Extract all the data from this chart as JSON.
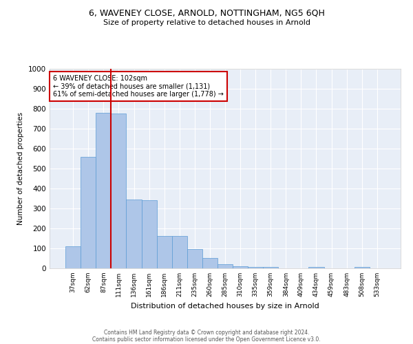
{
  "title_line1": "6, WAVENEY CLOSE, ARNOLD, NOTTINGHAM, NG5 6QH",
  "title_line2": "Size of property relative to detached houses in Arnold",
  "xlabel": "Distribution of detached houses by size in Arnold",
  "ylabel": "Number of detached properties",
  "categories": [
    "37sqm",
    "62sqm",
    "87sqm",
    "111sqm",
    "136sqm",
    "161sqm",
    "186sqm",
    "211sqm",
    "235sqm",
    "260sqm",
    "285sqm",
    "310sqm",
    "335sqm",
    "359sqm",
    "384sqm",
    "409sqm",
    "434sqm",
    "459sqm",
    "483sqm",
    "508sqm",
    "533sqm"
  ],
  "bar_heights": [
    110,
    557,
    780,
    775,
    345,
    340,
    163,
    163,
    95,
    52,
    20,
    12,
    8,
    8,
    0,
    0,
    8,
    0,
    0,
    8,
    0
  ],
  "bar_color": "#aec6e8",
  "bar_edge_color": "#5b9bd5",
  "vline_x_index": 2.5,
  "vline_color": "#cc0000",
  "annotation_text": "6 WAVENEY CLOSE: 102sqm\n← 39% of detached houses are smaller (1,131)\n61% of semi-detached houses are larger (1,778) →",
  "annotation_box_color": "#ffffff",
  "annotation_box_edge": "#cc0000",
  "ylim": [
    0,
    1000
  ],
  "yticks": [
    0,
    100,
    200,
    300,
    400,
    500,
    600,
    700,
    800,
    900,
    1000
  ],
  "plot_bg_color": "#e8eef7",
  "footer_line1": "Contains HM Land Registry data © Crown copyright and database right 2024.",
  "footer_line2": "Contains public sector information licensed under the Open Government Licence v3.0."
}
